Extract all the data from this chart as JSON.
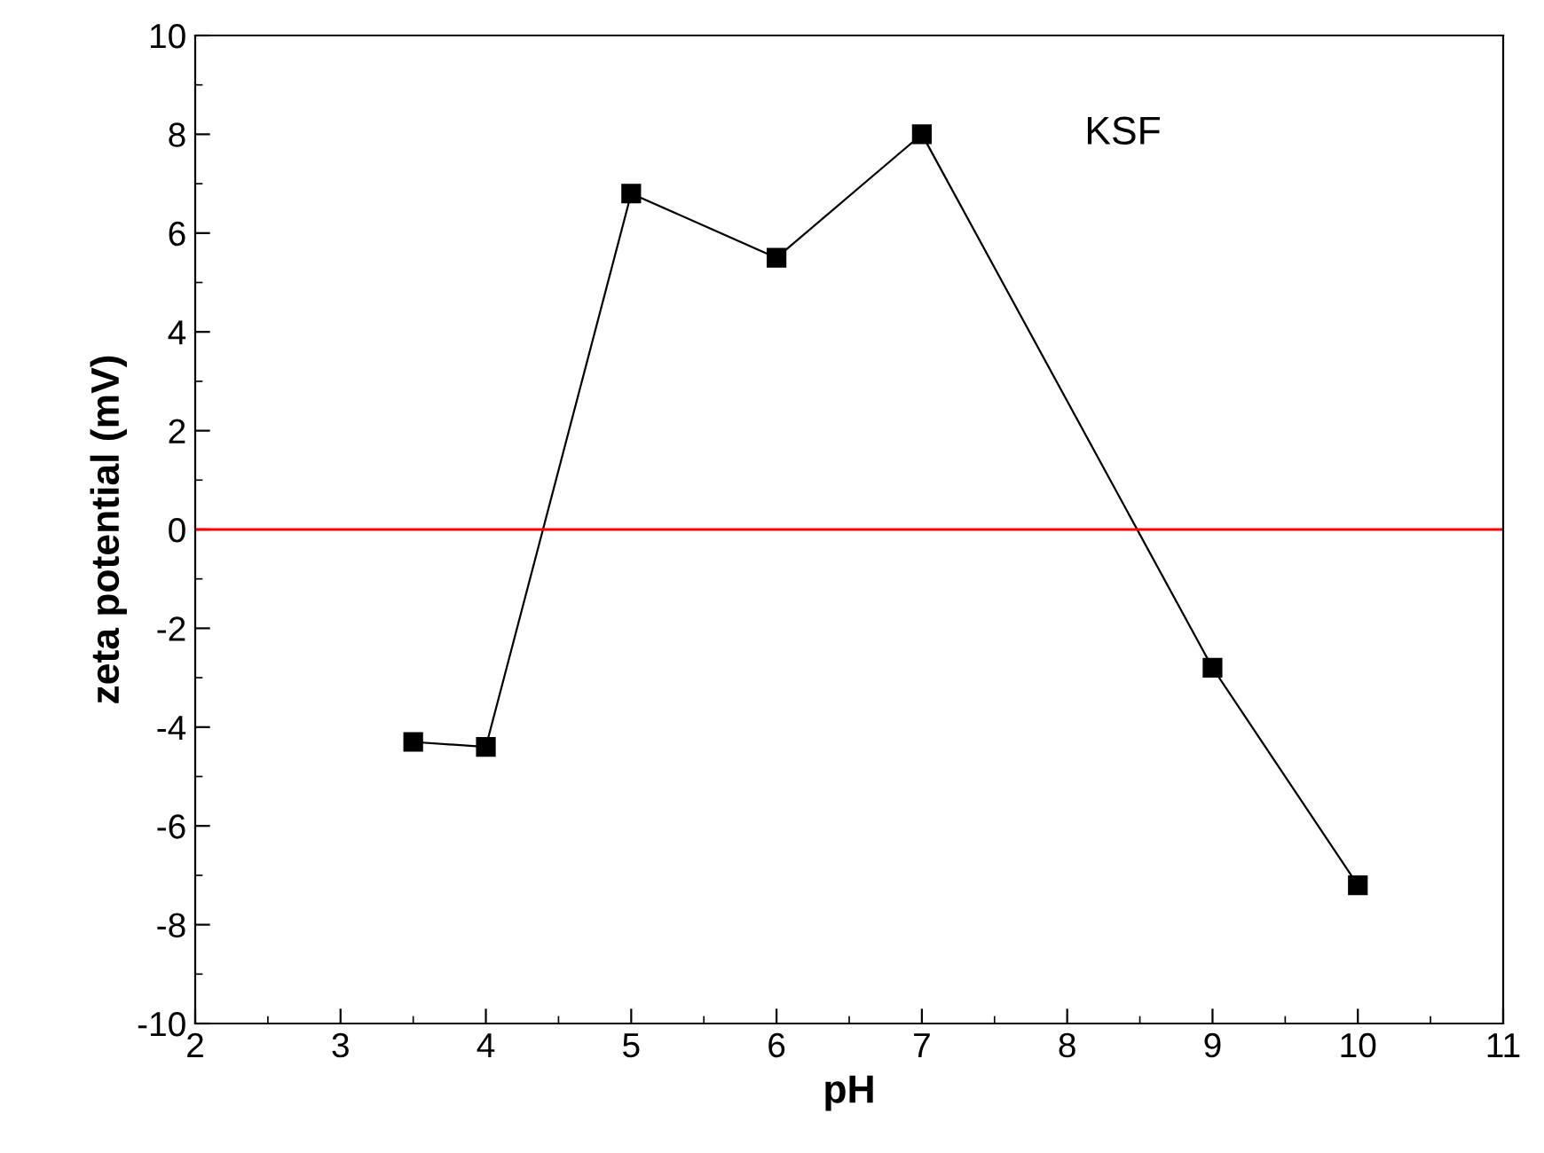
{
  "chart_data": {
    "type": "line",
    "xlabel": "pH",
    "ylabel": "zeta potential (mV)",
    "x": [
      3.5,
      4,
      5,
      6,
      7,
      9,
      10
    ],
    "series": [
      {
        "color": "#000000",
        "values": [
          -4.3,
          -4.4,
          6.8,
          5.5,
          8.0,
          -2.8,
          -7.2
        ]
      }
    ],
    "marker": "square",
    "line_style": "solid",
    "xlim": [
      2,
      11
    ],
    "xticks": [
      2,
      3,
      4,
      5,
      6,
      7,
      8,
      9,
      10,
      11
    ],
    "ylim": [
      -10,
      10
    ],
    "yticks": [
      -10,
      -8,
      -6,
      -4,
      -2,
      0,
      2,
      4,
      6,
      8,
      10
    ],
    "ref_lines": [
      {
        "axis": "y",
        "value": 0,
        "color": "#ff0000"
      }
    ],
    "annotations": [
      "KSF"
    ],
    "grid": false,
    "legend": false
  }
}
